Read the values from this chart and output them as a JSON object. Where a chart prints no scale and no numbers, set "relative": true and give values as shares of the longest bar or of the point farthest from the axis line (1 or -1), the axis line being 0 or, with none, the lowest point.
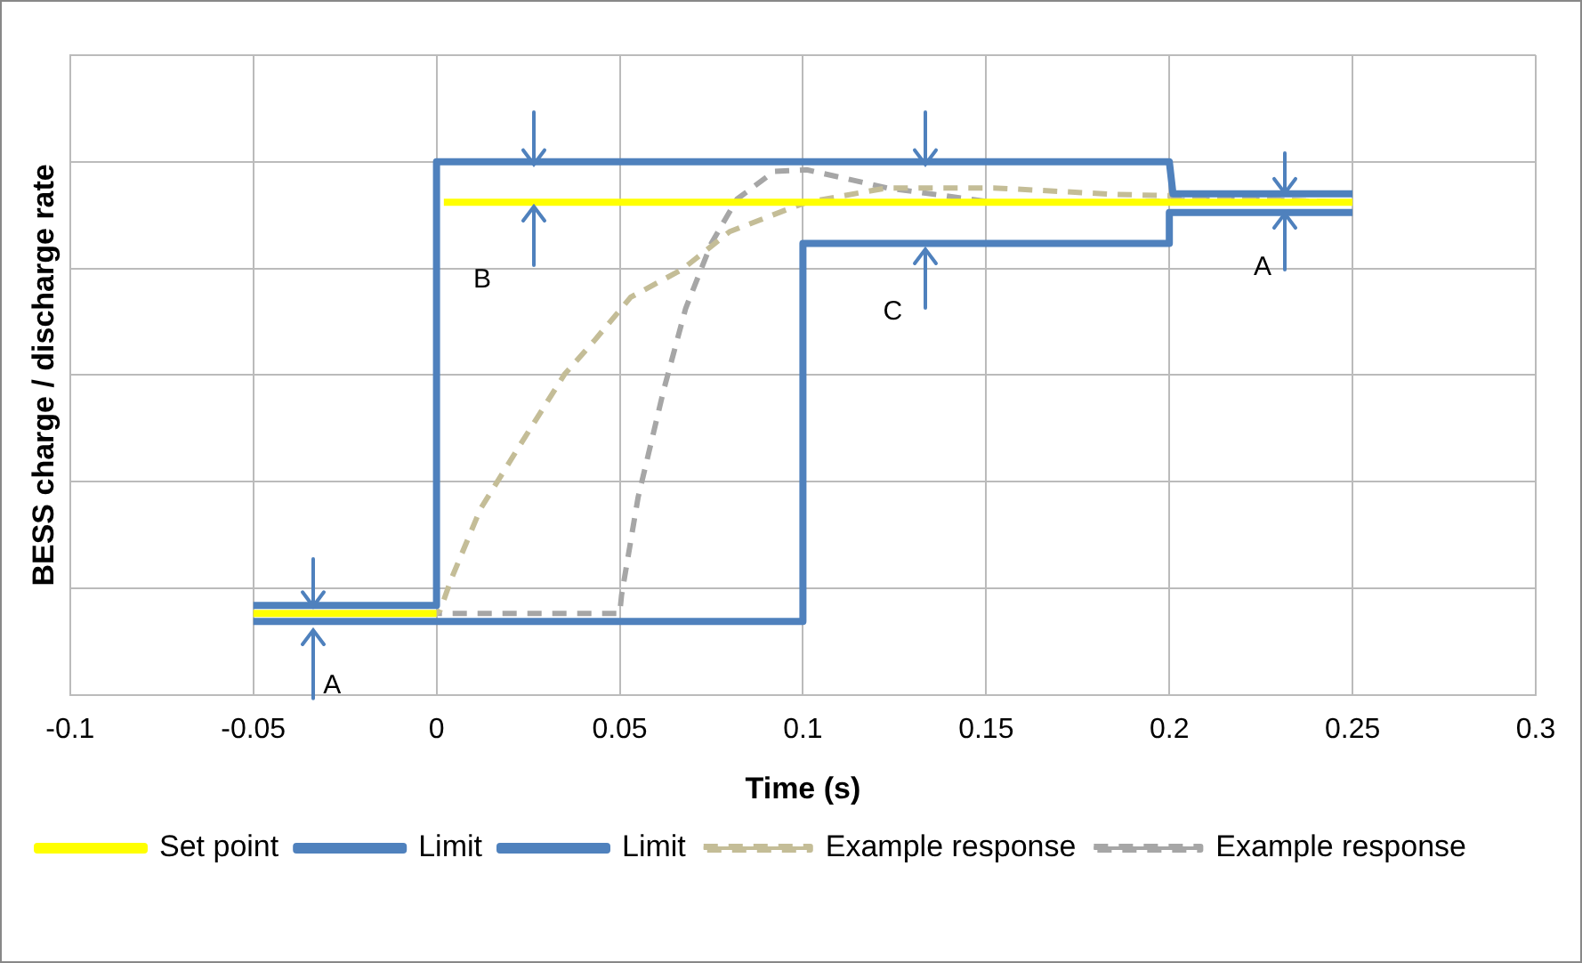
{
  "chart_data": {
    "type": "line",
    "relative": true,
    "xlabel": "Time (s)",
    "ylabel": "BESS charge / discharge rate",
    "xlim": [
      -0.1,
      0.3
    ],
    "xticks": [
      -0.1,
      -0.05,
      0,
      0.05,
      0.1,
      0.15,
      0.2,
      0.25,
      0.3
    ],
    "grid": true,
    "legend": "bottom",
    "marker": "none",
    "series": [
      {
        "name": "Set point",
        "color": "#ffff00",
        "line_style": "solid",
        "x": [
          -0.05,
          0,
          0.001,
          0.002,
          0.25
        ],
        "values": [
          0.153,
          0.153,
          null,
          0.924,
          0.924
        ]
      },
      {
        "name": "Limit",
        "color": "#4f81bd",
        "line_style": "solid",
        "x": [
          -0.05,
          0,
          0,
          0.2,
          0.201,
          0.25
        ],
        "values": [
          0.168,
          0.168,
          1.0,
          1.0,
          0.94,
          0.94
        ]
      },
      {
        "name": "Limit",
        "color": "#4f81bd",
        "line_style": "solid",
        "x": [
          -0.05,
          0.1,
          0.1,
          0.2,
          0.2,
          0.25
        ],
        "values": [
          0.138,
          0.138,
          0.847,
          0.847,
          0.905,
          0.905
        ]
      },
      {
        "name": "Example response",
        "color": "#c4bd97",
        "line_style": "dashed",
        "x": [
          -0.05,
          0,
          0.001,
          0.004,
          0.012,
          0.023,
          0.035,
          0.043,
          0.053,
          0.067,
          0.08,
          0.097,
          0.101,
          0.123,
          0.152,
          0.185,
          0.202,
          0.248
        ],
        "values": [
          0.153,
          0.153,
          0.159,
          0.217,
          0.349,
          0.471,
          0.602,
          0.664,
          0.746,
          0.798,
          0.869,
          0.914,
          0.924,
          0.951,
          0.951,
          0.939,
          0.936,
          0.924
        ]
      },
      {
        "name": "Example response",
        "color": "#a6a6a6",
        "line_style": "dashed",
        "x": [
          -0.05,
          0.05,
          0.0505,
          0.055,
          0.062,
          0.068,
          0.075,
          0.082,
          0.091,
          0.092,
          0.101,
          0.123,
          0.152,
          0.185,
          0.219,
          0.248
        ],
        "values": [
          0.153,
          0.153,
          0.187,
          0.37,
          0.572,
          0.725,
          0.847,
          0.93,
          0.976,
          0.982,
          0.985,
          0.951,
          0.924,
          0.924,
          0.93,
          0.924
        ]
      }
    ],
    "annotations": [
      "A",
      "B",
      "C",
      "A"
    ]
  }
}
